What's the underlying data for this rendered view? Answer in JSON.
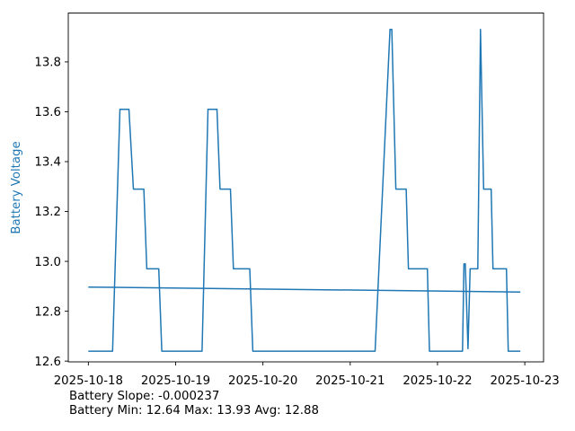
{
  "figure": {
    "background": "#ffffff"
  },
  "chart_data": {
    "type": "line",
    "title": "",
    "xlabel": "",
    "ylabel": "Battery Voltage",
    "ylabel_color": "#1f77b4",
    "line_color": "#1f77b4",
    "spine_color": "#000000",
    "grid": false,
    "legend": null,
    "x_unit": "days since 2025-10-18",
    "xlim": [
      -0.23,
      5.215
    ],
    "ylim": [
      12.597,
      13.996
    ],
    "x_ticks": [
      0,
      1,
      2,
      3,
      4,
      5
    ],
    "x_tick_labels": [
      "2025-10-18",
      "2025-10-19",
      "2025-10-20",
      "2025-10-21",
      "2025-10-22",
      "2025-10-23"
    ],
    "y_ticks": [
      12.6,
      12.8,
      13.0,
      13.2,
      13.4,
      13.6,
      13.8
    ],
    "y_tick_labels": [
      "12.6",
      "12.8",
      "13.0",
      "13.2",
      "13.4",
      "13.6",
      "13.8"
    ],
    "series": [
      {
        "name": "battery-voltage",
        "points": [
          [
            0.0,
            12.64
          ],
          [
            0.277,
            12.64
          ],
          [
            0.362,
            13.61
          ],
          [
            0.465,
            13.61
          ],
          [
            0.516,
            13.29
          ],
          [
            0.636,
            13.29
          ],
          [
            0.67,
            12.97
          ],
          [
            0.807,
            12.97
          ],
          [
            0.841,
            12.64
          ],
          [
            1.303,
            12.64
          ],
          [
            1.371,
            13.61
          ],
          [
            1.474,
            13.61
          ],
          [
            1.508,
            13.29
          ],
          [
            1.628,
            13.29
          ],
          [
            1.662,
            12.97
          ],
          [
            1.849,
            12.97
          ],
          [
            1.884,
            12.64
          ],
          [
            3.285,
            12.64
          ],
          [
            3.456,
            13.93
          ],
          [
            3.477,
            13.93
          ],
          [
            3.523,
            13.29
          ],
          [
            3.641,
            13.29
          ],
          [
            3.667,
            12.97
          ],
          [
            3.884,
            12.97
          ],
          [
            3.908,
            12.64
          ],
          [
            4.287,
            12.64
          ],
          [
            4.303,
            12.99
          ],
          [
            4.318,
            12.99
          ],
          [
            4.349,
            12.65
          ],
          [
            4.374,
            12.97
          ],
          [
            4.462,
            12.97
          ],
          [
            4.492,
            13.93
          ],
          [
            4.528,
            13.29
          ],
          [
            4.615,
            13.29
          ],
          [
            4.636,
            12.97
          ],
          [
            4.79,
            12.97
          ],
          [
            4.81,
            12.64
          ],
          [
            4.949,
            12.64
          ]
        ]
      },
      {
        "name": "trend",
        "points": [
          [
            0.0,
            12.897
          ],
          [
            4.949,
            12.877
          ]
        ]
      }
    ],
    "annotations": {
      "slope": "Battery Slope: -0.000237",
      "stats": "Battery Min: 12.64 Max: 13.93 Avg: 12.88"
    },
    "stats": {
      "min": 12.64,
      "max": 13.93,
      "avg": 12.88,
      "slope": -0.000237
    }
  }
}
